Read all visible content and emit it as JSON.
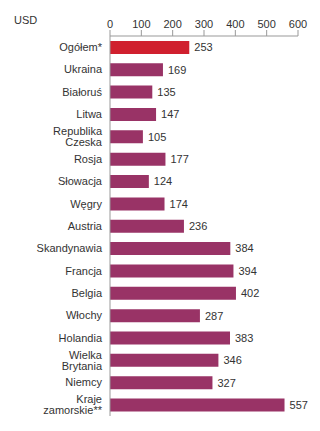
{
  "chart_data": {
    "type": "bar",
    "orientation": "horizontal",
    "xlabel": "USD",
    "categories": [
      "Ogółem*",
      "Ukraina",
      "Białoruś",
      "Litwa",
      "Republika Czeska",
      "Rosja",
      "Słowacja",
      "Węgry",
      "Austria",
      "Skandynawia",
      "Francja",
      "Belgia",
      "Włochy",
      "Holandia",
      "Wielka Brytania",
      "Niemcy",
      "Kraje zamorskie**"
    ],
    "values": [
      253,
      169,
      135,
      147,
      105,
      177,
      124,
      174,
      236,
      384,
      394,
      402,
      287,
      383,
      346,
      327,
      557
    ],
    "colors": [
      "#d0202e",
      "#993366",
      "#993366",
      "#993366",
      "#993366",
      "#993366",
      "#993366",
      "#993366",
      "#993366",
      "#993366",
      "#993366",
      "#993366",
      "#993366",
      "#993366",
      "#993366",
      "#993366",
      "#993366"
    ],
    "xlim": [
      0,
      600
    ],
    "xticks": [
      0,
      100,
      200,
      300,
      400,
      500,
      600
    ],
    "data_labels": true,
    "grid": false
  }
}
